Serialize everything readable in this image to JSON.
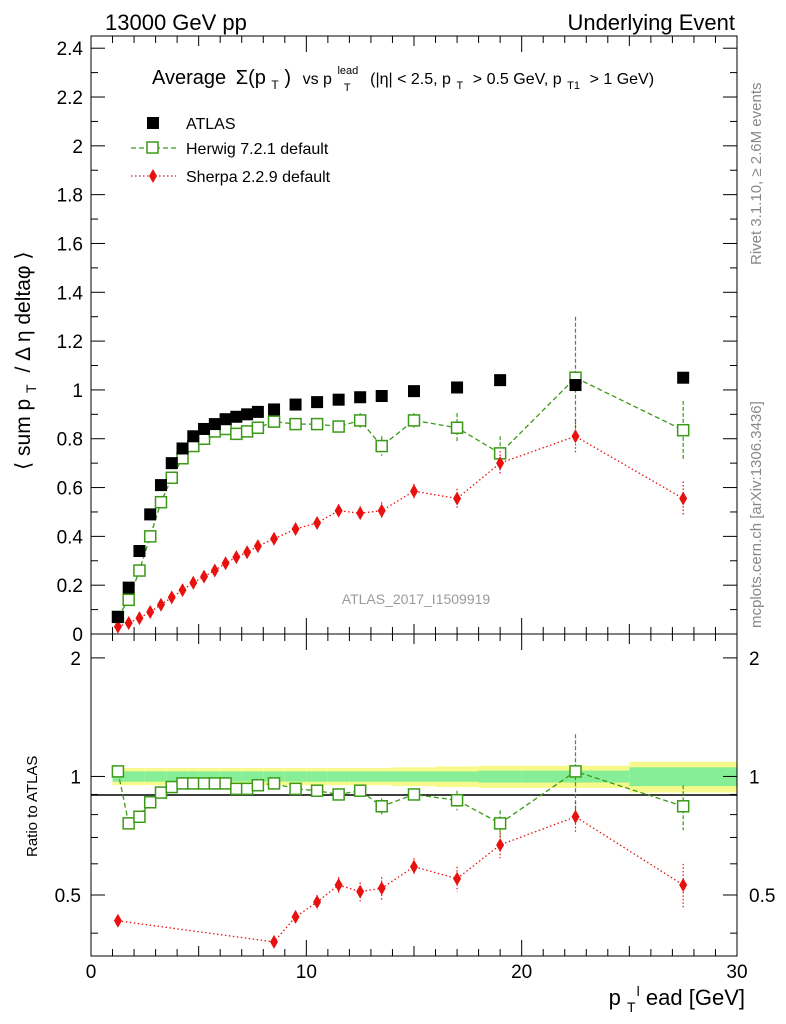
{
  "header": {
    "left": "13000 GeV pp",
    "right": "Underlying Event"
  },
  "side_labels": {
    "rivet": "Rivet 3.1.10, ≥ 2.6M events",
    "mcplots": "mcplots.cern.ch [arXiv:1306.3436]"
  },
  "chart_data": [
    {
      "type": "scatter",
      "panel": "main",
      "title": "Average Σ(p_T) vs p_T^lead (|η| < 2.5, p_T > 0.5 GeV, p_T1 > 1 GeV)",
      "title_parts": {
        "avg": "Average",
        "sigma": "Σ(p",
        "t_sub": "T",
        "sigma_close": ")",
        "vs": "vs p",
        "lead_sup": "lead",
        "lead_sub": "T",
        "cond1": "(|η| < 2.5, p",
        "cond1_sub": "T",
        "cond2": "> 0.5 GeV, p",
        "cond2_sub": "T1",
        "cond3": "> 1 GeV)"
      },
      "ylabel": "⟨ sum p_T / Δ η deltaφ ⟩",
      "ylabel_parts": {
        "a": "⟨ sum p",
        "sub": "T",
        "b": "/ Δ η deltaφ ⟩"
      },
      "watermark": "ATLAS_2017_I1509919",
      "xlim": [
        0,
        30
      ],
      "ylim": [
        0,
        2.45
      ],
      "yticks": [
        "0",
        "0.2",
        "0.4",
        "0.6",
        "0.8",
        "1",
        "1.2",
        "1.4",
        "1.6",
        "1.8",
        "2",
        "2.2",
        "2.4"
      ],
      "legend_position": "top-left",
      "series": [
        {
          "name": "ATLAS",
          "color": "#000000",
          "marker": "filled-square",
          "x": [
            1.25,
            1.75,
            2.25,
            2.75,
            3.25,
            3.75,
            4.25,
            4.75,
            5.25,
            5.75,
            6.25,
            6.75,
            7.25,
            7.75,
            8.5,
            9.5,
            10.5,
            11.5,
            12.5,
            13.5,
            15,
            17,
            19,
            22.5,
            27.5
          ],
          "y": [
            0.07,
            0.19,
            0.34,
            0.49,
            0.61,
            0.7,
            0.76,
            0.81,
            0.84,
            0.86,
            0.88,
            0.89,
            0.9,
            0.91,
            0.92,
            0.94,
            0.95,
            0.96,
            0.97,
            0.975,
            0.995,
            1.01,
            1.04,
            1.02,
            1.05
          ]
        },
        {
          "name": "Herwig 7.2.1 default",
          "color": "#3a9a17",
          "marker": "open-square",
          "x": [
            1.25,
            1.75,
            2.25,
            2.75,
            3.25,
            3.75,
            4.25,
            4.75,
            5.25,
            5.75,
            6.25,
            6.75,
            7.25,
            7.75,
            8.5,
            9.5,
            10.5,
            11.5,
            12.5,
            13.5,
            15,
            17,
            19,
            22.5,
            27.5
          ],
          "y": [
            0.07,
            0.14,
            0.26,
            0.4,
            0.54,
            0.64,
            0.72,
            0.77,
            0.8,
            0.83,
            0.84,
            0.82,
            0.83,
            0.845,
            0.87,
            0.86,
            0.86,
            0.85,
            0.875,
            0.77,
            0.875,
            0.845,
            0.74,
            1.05,
            0.835
          ],
          "yerr": [
            0.005,
            0.005,
            0.007,
            0.008,
            0.01,
            0.01,
            0.01,
            0.01,
            0.01,
            0.01,
            0.01,
            0.012,
            0.012,
            0.014,
            0.016,
            0.018,
            0.02,
            0.022,
            0.03,
            0.04,
            0.03,
            0.06,
            0.07,
            0.25,
            0.12
          ]
        },
        {
          "name": "Sherpa 2.2.9 default",
          "color": "#e8110f",
          "marker": "filled-diamond",
          "x": [
            1.25,
            1.75,
            2.25,
            2.75,
            3.25,
            3.75,
            4.25,
            4.75,
            5.25,
            5.75,
            6.25,
            6.75,
            7.25,
            7.75,
            8.5,
            9.5,
            10.5,
            11.5,
            12.5,
            13.5,
            15,
            17,
            19,
            22.5,
            27.5
          ],
          "y": [
            0.03,
            0.045,
            0.065,
            0.09,
            0.12,
            0.15,
            0.18,
            0.21,
            0.235,
            0.26,
            0.29,
            0.315,
            0.335,
            0.36,
            0.39,
            0.43,
            0.455,
            0.505,
            0.495,
            0.505,
            0.585,
            0.555,
            0.7,
            0.81,
            0.555
          ],
          "yerr": [
            0.003,
            0.003,
            0.004,
            0.005,
            0.006,
            0.006,
            0.007,
            0.008,
            0.008,
            0.009,
            0.009,
            0.01,
            0.01,
            0.011,
            0.012,
            0.015,
            0.02,
            0.025,
            0.028,
            0.035,
            0.03,
            0.04,
            0.05,
            0.07,
            0.07
          ]
        }
      ]
    },
    {
      "type": "scatter",
      "panel": "ratio",
      "ylabel": "Ratio to ATLAS",
      "xlabel": "p_T^lead [GeV]",
      "xlabel_parts": {
        "a": "p",
        "sub": "T",
        "sup": "l",
        "b": "ead [GeV]"
      },
      "xlim": [
        0,
        30
      ],
      "ylim": [
        0.35,
        2.3
      ],
      "xticks": [
        "0",
        "10",
        "20",
        "30"
      ],
      "yticks": [
        "0.5",
        "1",
        "2"
      ],
      "band": {
        "x_edges": [
          1.0,
          1.5,
          2.0,
          2.5,
          3.0,
          3.5,
          4.0,
          4.5,
          5.0,
          5.5,
          6.0,
          6.5,
          7.0,
          7.5,
          8.0,
          9.0,
          10.0,
          11.0,
          12.0,
          13.0,
          14.0,
          16.0,
          18.0,
          20.0,
          25.0,
          30.0
        ],
        "inner": [
          0.03,
          0.03,
          0.03,
          0.03,
          0.03,
          0.03,
          0.03,
          0.03,
          0.03,
          0.03,
          0.03,
          0.03,
          0.03,
          0.03,
          0.03,
          0.03,
          0.03,
          0.03,
          0.03,
          0.03,
          0.03,
          0.03,
          0.035,
          0.035,
          0.055
        ],
        "outer": [
          0.05,
          0.05,
          0.05,
          0.05,
          0.05,
          0.05,
          0.05,
          0.05,
          0.05,
          0.05,
          0.05,
          0.05,
          0.05,
          0.05,
          0.05,
          0.05,
          0.05,
          0.05,
          0.05,
          0.05,
          0.055,
          0.06,
          0.065,
          0.065,
          0.09
        ]
      },
      "series": [
        {
          "name": "Herwig 7.2.1 default",
          "color": "#3a9a17",
          "marker": "open-square",
          "x": [
            1.25,
            1.75,
            2.25,
            2.75,
            3.25,
            3.75,
            4.25,
            4.75,
            5.25,
            5.75,
            6.25,
            6.75,
            7.25,
            7.75,
            8.5,
            9.5,
            10.5,
            11.5,
            12.5,
            13.5,
            15,
            17,
            19,
            22.5,
            27.5
          ],
          "y": [
            1.03,
            0.76,
            0.79,
            0.86,
            0.91,
            0.94,
            0.96,
            0.96,
            0.96,
            0.96,
            0.96,
            0.93,
            0.93,
            0.95,
            0.96,
            0.93,
            0.92,
            0.9,
            0.92,
            0.84,
            0.9,
            0.87,
            0.76,
            1.03,
            0.84
          ],
          "yerr": [
            0.01,
            0.01,
            0.01,
            0.01,
            0.01,
            0.01,
            0.01,
            0.01,
            0.01,
            0.01,
            0.01,
            0.012,
            0.012,
            0.014,
            0.016,
            0.02,
            0.02,
            0.022,
            0.03,
            0.04,
            0.03,
            0.05,
            0.06,
            0.25,
            0.11
          ]
        },
        {
          "name": "Sherpa 2.2.9 default",
          "color": "#e8110f",
          "marker": "filled-diamond",
          "x": [
            1.25,
            8.5,
            9.5,
            10.5,
            11.5,
            12.5,
            13.5,
            15,
            17,
            19,
            22.5,
            27.5
          ],
          "y": [
            0.43,
            0.38,
            0.44,
            0.48,
            0.53,
            0.51,
            0.52,
            0.59,
            0.55,
            0.67,
            0.79,
            0.53
          ],
          "yerr": [
            0.005,
            0.01,
            0.012,
            0.02,
            0.025,
            0.028,
            0.035,
            0.03,
            0.04,
            0.05,
            0.07,
            0.07
          ]
        }
      ]
    }
  ]
}
